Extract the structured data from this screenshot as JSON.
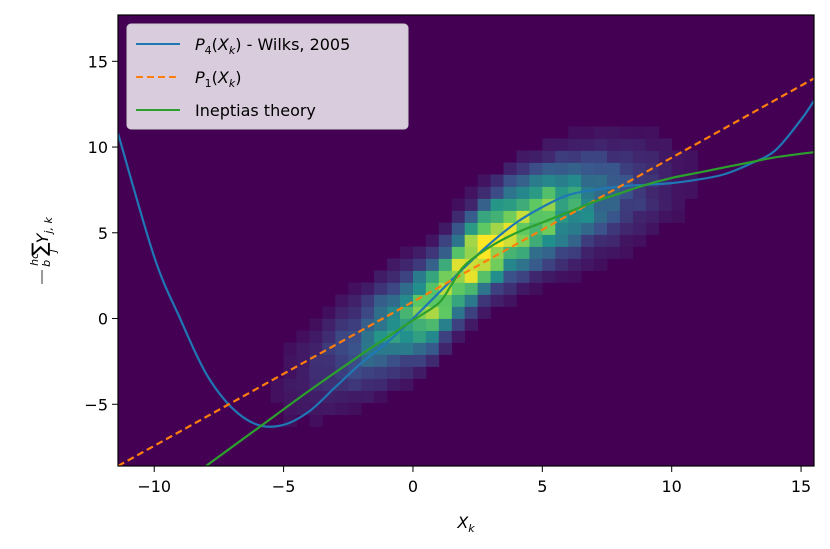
{
  "chart_data": {
    "type": "heatmap",
    "xlabel": "X_k",
    "ylabel": "hc/b Σ_j Y_j,k",
    "xlim": [
      -11.4,
      15.5
    ],
    "ylim": [
      -8.6,
      17.7
    ],
    "xticks": [
      -10,
      -5,
      0,
      5,
      10,
      15
    ],
    "yticks": [
      -5,
      0,
      5,
      10,
      15
    ],
    "xtick_labels": [
      "−10",
      "−5",
      "0",
      "5",
      "10",
      "15"
    ],
    "ytick_labels": [
      "−5",
      "0",
      "5",
      "10",
      "15"
    ],
    "grid": false,
    "colormap": "viridis",
    "background": "#440154",
    "heatmap": {
      "bin_width": 0.5,
      "bin_height": 0.7,
      "description_points": [
        {
          "x": -5,
          "y": -3.5,
          "density": 0.05
        },
        {
          "x": -2,
          "y": -1.5,
          "density": 0.45
        },
        {
          "x": 0,
          "y": 0,
          "density": 0.6
        },
        {
          "x": 1,
          "y": 1.5,
          "density": 0.8
        },
        {
          "x": 2,
          "y": 3.5,
          "density": 0.95
        },
        {
          "x": 3.5,
          "y": 4.8,
          "density": 1.0
        },
        {
          "x": 5,
          "y": 5.8,
          "density": 0.75
        },
        {
          "x": 7.5,
          "y": 6.8,
          "density": 0.45
        },
        {
          "x": 10,
          "y": 8.0,
          "density": 0.25
        },
        {
          "x": 12.5,
          "y": 9.0,
          "density": 0.08
        }
      ]
    },
    "series": [
      {
        "name": "P_4(X_k) - Wilks, 2005",
        "color": "#1f77b4",
        "style": "solid",
        "x": [
          -11.4,
          -10,
          -9,
          -8,
          -7,
          -6,
          -5,
          -4,
          -3,
          -2,
          -1,
          0,
          1,
          2,
          3,
          4,
          5,
          6,
          7,
          8,
          9,
          10,
          11,
          12,
          13,
          14,
          15,
          15.5
        ],
        "y": [
          10.8,
          3.6,
          0.0,
          -3.2,
          -5.2,
          -6.2,
          -6.2,
          -5.4,
          -4.0,
          -2.6,
          -1.4,
          0.0,
          1.5,
          3.0,
          4.4,
          5.6,
          6.5,
          7.2,
          7.5,
          7.7,
          7.8,
          7.9,
          8.1,
          8.4,
          9.0,
          9.8,
          11.6,
          12.7
        ]
      },
      {
        "name": "P_1(X_k)",
        "color": "#ff7f0e",
        "style": "dashed",
        "x": [
          -11.4,
          15.5
        ],
        "y": [
          -8.6,
          14.0
        ]
      },
      {
        "name": "Ineptias theory",
        "color": "#2ca02c",
        "style": "solid",
        "x": [
          -8.0,
          -6,
          -4,
          -2,
          -1,
          0,
          1,
          1.5,
          2,
          3,
          4,
          5,
          6,
          7,
          8,
          9,
          10,
          11,
          12,
          13,
          14,
          15.5
        ],
        "y": [
          -8.6,
          -6.4,
          -4.2,
          -2.1,
          -1.1,
          -0.1,
          0.9,
          2.0,
          3.1,
          4.2,
          5.0,
          5.6,
          6.2,
          6.8,
          7.3,
          7.8,
          8.2,
          8.5,
          8.8,
          9.1,
          9.4,
          9.7
        ]
      }
    ],
    "legend": {
      "position": "top-left",
      "entries": [
        {
          "label": "P_4(X_k) - Wilks, 2005",
          "color": "#1f77b4",
          "style": "solid"
        },
        {
          "label": "P_1(X_k)",
          "color": "#ff7f0e",
          "style": "dashed"
        },
        {
          "label": "Ineptias theory",
          "color": "#2ca02c",
          "style": "solid"
        }
      ]
    }
  }
}
